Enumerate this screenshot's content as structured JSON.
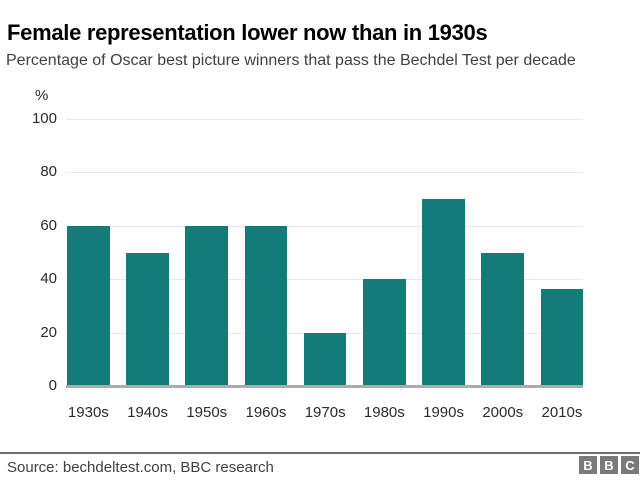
{
  "header": {
    "title": "Female representation lower now than in 1930s",
    "subtitle": "Percentage of Oscar best picture winners that pass the Bechdel Test per decade"
  },
  "chart_data": {
    "type": "bar",
    "title": "Female representation lower now than in 1930s",
    "subtitle": "Percentage of Oscar best picture winners that pass the Bechdel Test per decade",
    "categories": [
      "1930s",
      "1940s",
      "1950s",
      "1960s",
      "1970s",
      "1980s",
      "1990s",
      "2000s",
      "2010s"
    ],
    "values": [
      60,
      50,
      60,
      60,
      20,
      40,
      70,
      50,
      36.4
    ],
    "xlabel": "",
    "ylabel": "%",
    "ylim": [
      0,
      100
    ],
    "yticks": [
      0,
      20,
      40,
      60,
      80,
      100
    ],
    "grid": true,
    "legend": false,
    "bar_color": "#127d78"
  },
  "footer": {
    "source": "Source: bechdeltest.com, BBC research",
    "logo_letters": [
      "B",
      "B",
      "C"
    ]
  },
  "colors": {
    "bar": "#127d78",
    "gridline": "#e9e9e9",
    "axis_line": "#ababab",
    "divider": "#6f6f6f",
    "logo_block": "#7a7a7a",
    "title_text": "#000000",
    "body_text": "#404040",
    "tick_text": "#2b2b2b"
  }
}
